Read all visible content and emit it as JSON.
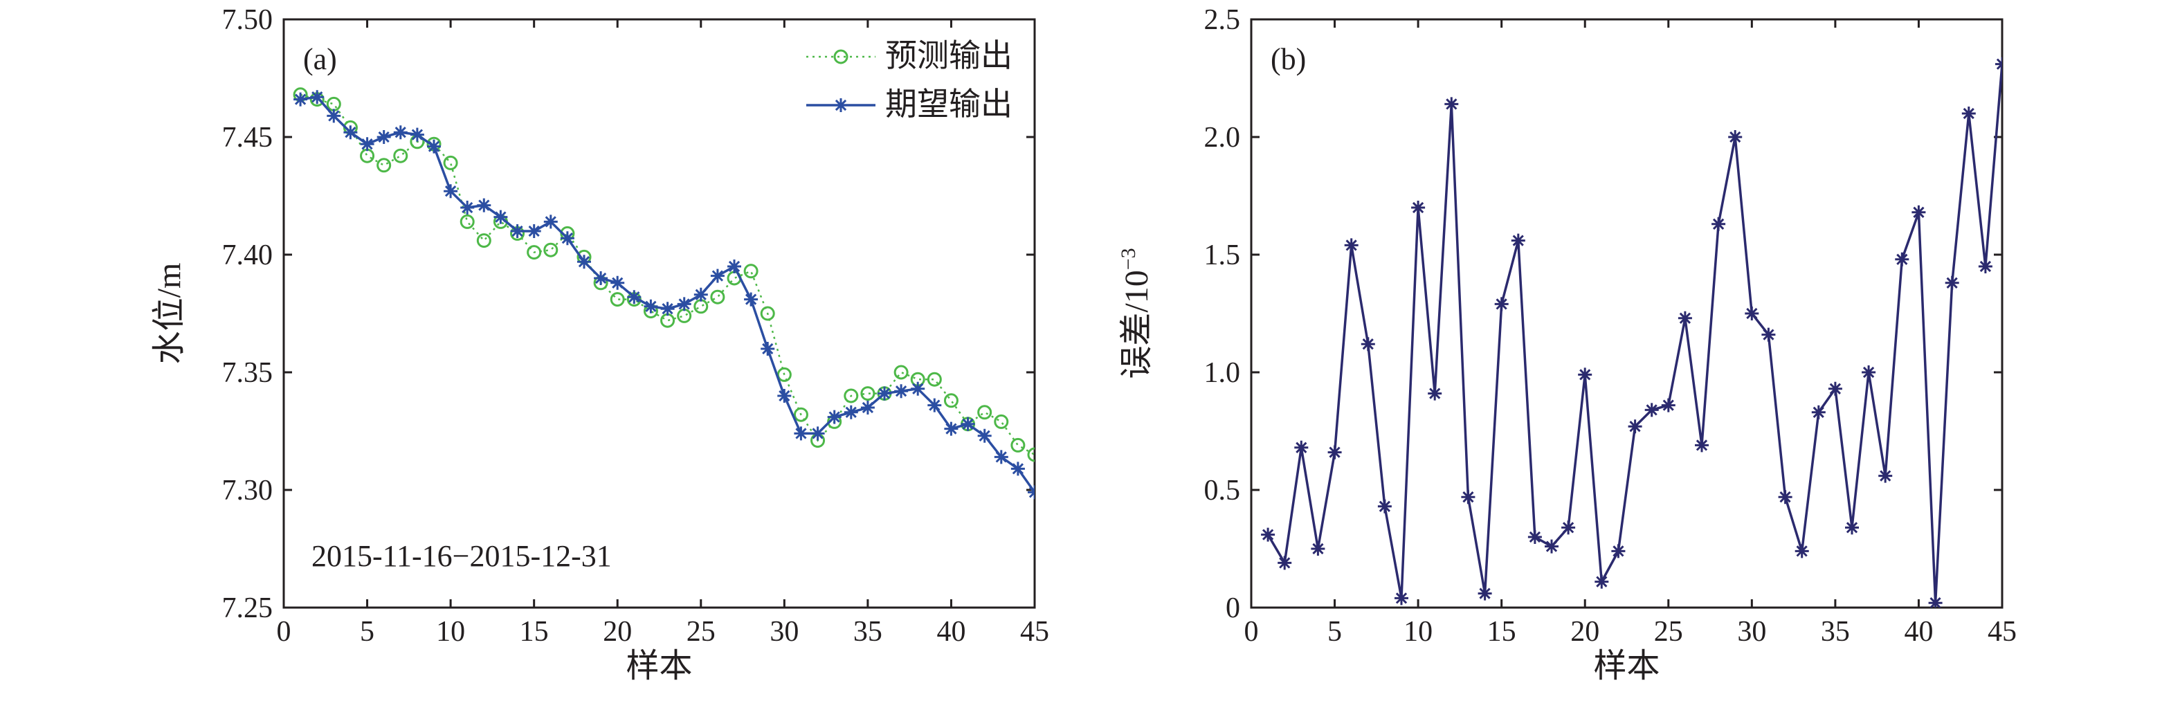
{
  "chart_data": [
    {
      "type": "line",
      "panel_label": "(a)",
      "xlabel": "样本",
      "ylabel": "水位/m",
      "annotation": "2015-11-16−2015-12-31",
      "xlim": [
        0,
        45
      ],
      "ylim": [
        7.25,
        7.5
      ],
      "xticks": [
        "0",
        "5",
        "10",
        "15",
        "20",
        "25",
        "30",
        "35",
        "40",
        "45"
      ],
      "yticks": [
        "7.25",
        "7.30",
        "7.35",
        "7.40",
        "7.45",
        "7.50"
      ],
      "legend_position": "top-right",
      "x": [
        1,
        2,
        3,
        4,
        5,
        6,
        7,
        8,
        9,
        10,
        11,
        12,
        13,
        14,
        15,
        16,
        17,
        18,
        19,
        20,
        21,
        22,
        23,
        24,
        25,
        26,
        27,
        28,
        29,
        30,
        31,
        32,
        33,
        34,
        35,
        36,
        37,
        38,
        39,
        40,
        41,
        42,
        43,
        44,
        45
      ],
      "series": [
        {
          "name": "预测输出",
          "color": "#4db848",
          "marker": "circle",
          "line": "dotted",
          "values": [
            7.468,
            7.466,
            7.464,
            7.454,
            7.442,
            7.438,
            7.442,
            7.448,
            7.447,
            7.439,
            7.414,
            7.406,
            7.414,
            7.409,
            7.401,
            7.402,
            7.409,
            7.399,
            7.388,
            7.381,
            7.381,
            7.376,
            7.372,
            7.374,
            7.378,
            7.382,
            7.39,
            7.393,
            7.375,
            7.349,
            7.332,
            7.321,
            7.329,
            7.34,
            7.341,
            7.341,
            7.35,
            7.347,
            7.347,
            7.338,
            7.328,
            7.333,
            7.329,
            7.319,
            7.315
          ]
        },
        {
          "name": "期望输出",
          "color": "#2b4ea2",
          "marker": "star",
          "line": "solid",
          "values": [
            7.466,
            7.467,
            7.459,
            7.452,
            7.447,
            7.45,
            7.452,
            7.451,
            7.446,
            7.427,
            7.42,
            7.421,
            7.416,
            7.41,
            7.41,
            7.414,
            7.407,
            7.397,
            7.39,
            7.388,
            7.382,
            7.378,
            7.377,
            7.379,
            7.383,
            7.391,
            7.395,
            7.381,
            7.36,
            7.34,
            7.324,
            7.324,
            7.331,
            7.333,
            7.335,
            7.341,
            7.342,
            7.343,
            7.336,
            7.326,
            7.328,
            7.323,
            7.314,
            7.309,
            7.299
          ]
        }
      ]
    },
    {
      "type": "line",
      "panel_label": "(b)",
      "xlabel": "样本",
      "ylabel": "误差/10",
      "ylabel_superscript": "−3",
      "xlim": [
        0,
        45
      ],
      "ylim": [
        0,
        2.5
      ],
      "xticks": [
        "0",
        "5",
        "10",
        "15",
        "20",
        "25",
        "30",
        "35",
        "40",
        "45"
      ],
      "yticks": [
        "0",
        "0.5",
        "1.0",
        "1.5",
        "2.0",
        "2.5"
      ],
      "x": [
        1,
        2,
        3,
        4,
        5,
        6,
        7,
        8,
        9,
        10,
        11,
        12,
        13,
        14,
        15,
        16,
        17,
        18,
        19,
        20,
        21,
        22,
        23,
        24,
        25,
        26,
        27,
        28,
        29,
        30,
        31,
        32,
        33,
        34,
        35,
        36,
        37,
        38,
        39,
        40,
        41,
        42,
        43,
        44,
        45
      ],
      "series": [
        {
          "color": "#2b2a6e",
          "marker": "star",
          "line": "solid",
          "values": [
            0.31,
            0.19,
            0.68,
            0.25,
            0.66,
            1.54,
            1.12,
            0.43,
            0.04,
            1.7,
            0.91,
            2.14,
            0.47,
            0.06,
            1.29,
            1.56,
            0.3,
            0.26,
            0.34,
            0.99,
            0.11,
            0.24,
            0.77,
            0.84,
            0.86,
            1.23,
            0.69,
            1.63,
            2.0,
            1.25,
            1.16,
            0.47,
            0.24,
            0.83,
            0.93,
            0.34,
            1.0,
            0.56,
            1.48,
            1.68,
            0.02,
            1.38,
            2.1,
            1.45,
            2.31
          ]
        }
      ]
    }
  ]
}
